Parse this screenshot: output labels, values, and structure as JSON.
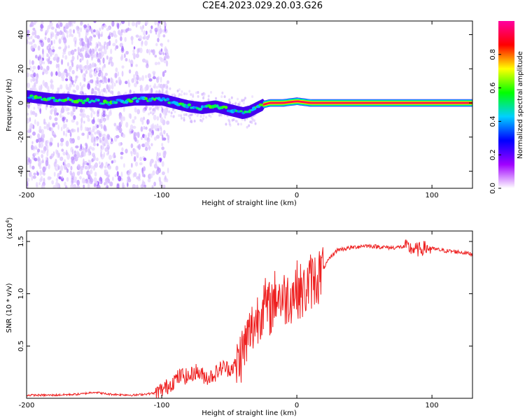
{
  "title": "C2E4.2023.029.20.03.G26",
  "chart_data": [
    {
      "type": "heatmap",
      "xlabel": "Height of straight line (km)",
      "ylabel": "Frequency (Hz)",
      "xlim": [
        -200,
        130
      ],
      "ylim": [
        -50,
        48
      ],
      "xticks": [
        -200,
        -100,
        0,
        100
      ],
      "xtick_labels": [
        "-200",
        "-100",
        "0",
        "100"
      ],
      "yticks": [
        -40,
        -20,
        0,
        20,
        40
      ],
      "ytick_labels": [
        "-40",
        "-20",
        "0",
        "20",
        "40"
      ],
      "colorbar": {
        "label": "Normalized spectral amplitude",
        "range": [
          0,
          1
        ],
        "ticks": [
          0,
          0.2,
          0.4,
          0.6,
          0.8
        ],
        "tick_labels": [
          "0.0",
          "0.2",
          "0.4",
          "0.6",
          "0.8"
        ],
        "colors": [
          "#ffffff",
          "#a000ff",
          "#0000ff",
          "#00d0ff",
          "#00ff00",
          "#ffff00",
          "#ff0000",
          "#ff00a0"
        ]
      },
      "frequency_track": {
        "x": [
          -200,
          -190,
          -180,
          -170,
          -160,
          -150,
          -140,
          -130,
          -120,
          -110,
          -100,
          -90,
          -80,
          -70,
          -60,
          -50,
          -40,
          -35,
          -30,
          -25,
          -20,
          -10,
          0,
          10,
          20,
          50,
          80,
          100,
          130
        ],
        "y": [
          4,
          3,
          2,
          2,
          1,
          1,
          0,
          1,
          2,
          2,
          2,
          0,
          -2,
          -3,
          -2,
          -4,
          -6,
          -5,
          -3,
          -1,
          0,
          0,
          1,
          0,
          0,
          0,
          0,
          0,
          0
        ]
      }
    },
    {
      "type": "line",
      "xlabel": "Height of straight line (km)",
      "ylabel": "SNR (10 * v/v)",
      "yscale_label": "(x10",
      "yscale_exponent": "4",
      "xlim": [
        -200,
        130
      ],
      "ylim": [
        0,
        1.6
      ],
      "xticks": [
        -200,
        -100,
        0,
        100
      ],
      "xtick_labels": [
        "-200",
        "-100",
        "0",
        "100"
      ],
      "yticks": [
        0.5,
        1.0,
        1.5
      ],
      "ytick_labels": [
        "0.5",
        "1.0",
        "1.5"
      ],
      "color": "#ee2020",
      "series": [
        {
          "x": [
            -200,
            -180,
            -160,
            -150,
            -140,
            -120,
            -105,
            -100,
            -95,
            -90,
            -85,
            -80,
            -75,
            -70,
            -65,
            -60,
            -55,
            -50,
            -45,
            -40,
            -35,
            -30,
            -25,
            -20,
            -15,
            -10,
            -5,
            0,
            5,
            10,
            15,
            20,
            25,
            30,
            40,
            50,
            60,
            70,
            80,
            85,
            90,
            95,
            100,
            110,
            120,
            130
          ],
          "y": [
            0.03,
            0.03,
            0.04,
            0.06,
            0.04,
            0.03,
            0.05,
            0.08,
            0.12,
            0.18,
            0.22,
            0.2,
            0.26,
            0.22,
            0.2,
            0.24,
            0.3,
            0.28,
            0.32,
            0.45,
            0.62,
            0.75,
            0.9,
            0.85,
            1.0,
            0.95,
            0.98,
            1.05,
            1.0,
            1.12,
            1.15,
            1.25,
            1.35,
            1.42,
            1.44,
            1.46,
            1.45,
            1.44,
            1.45,
            1.43,
            1.42,
            1.44,
            1.43,
            1.41,
            1.4,
            1.38
          ]
        }
      ]
    }
  ]
}
